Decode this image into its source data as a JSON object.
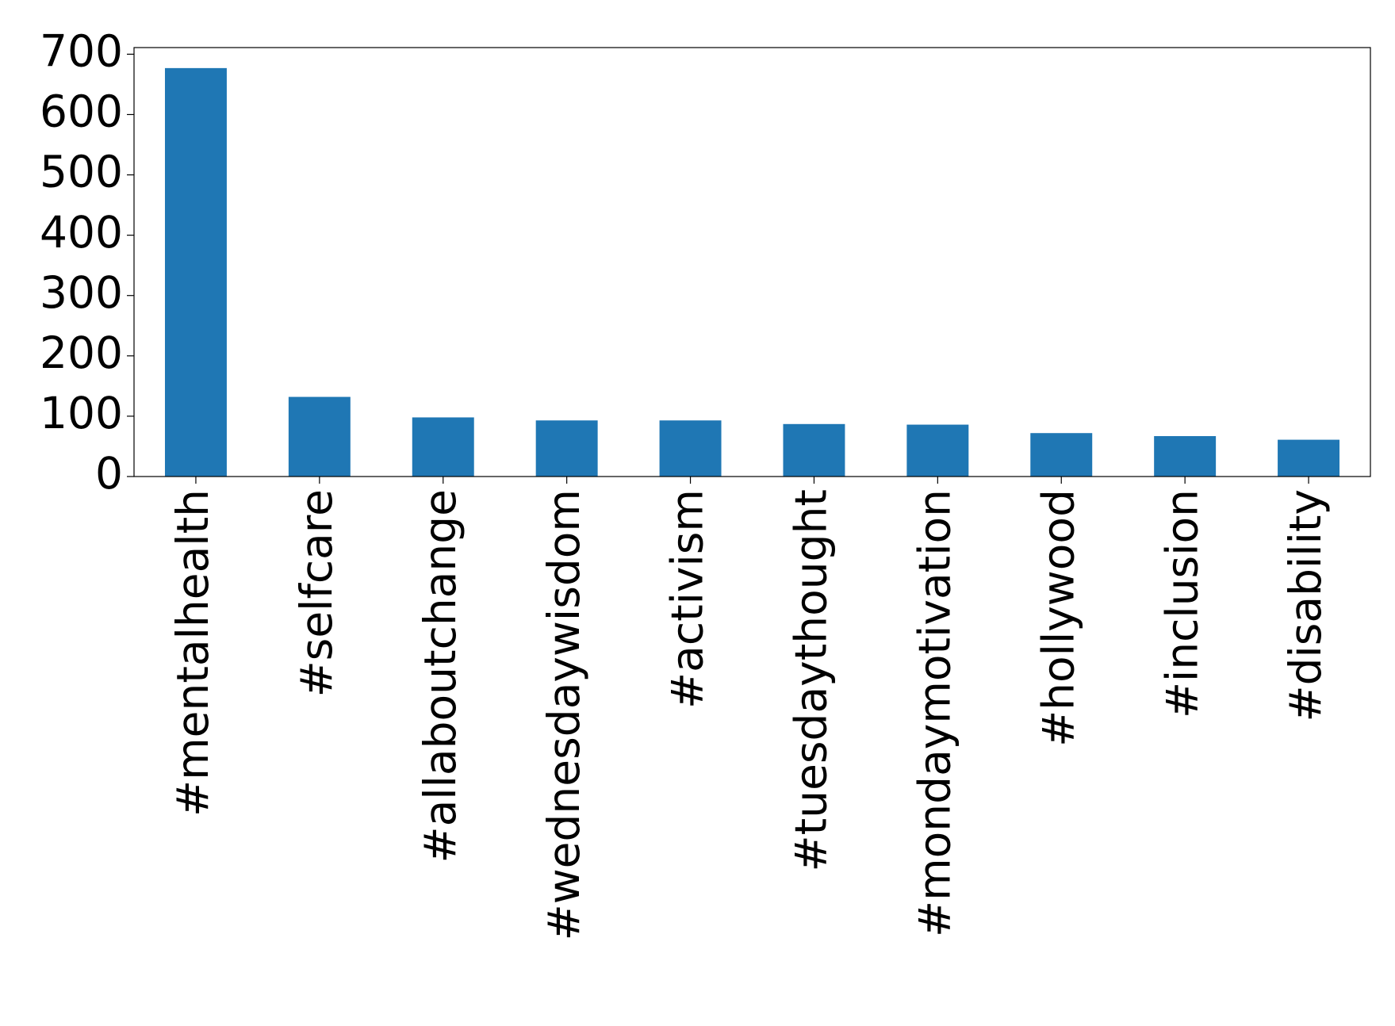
{
  "chart_data": {
    "type": "bar",
    "categories": [
      "#mentalhealth",
      "#selfcare",
      "#allaboutchange",
      "#wednesdaywisdom",
      "#activism",
      "#tuesdaythought",
      "#mondaymotivation",
      "#hollywood",
      "#inclusion",
      "#disability"
    ],
    "values": [
      677,
      132,
      98,
      93,
      93,
      87,
      86,
      72,
      67,
      61
    ],
    "color": "#1f77b4",
    "ylim": [
      0,
      711
    ],
    "yticks": [
      0,
      100,
      200,
      300,
      400,
      500,
      600,
      700
    ],
    "grid": false
  }
}
